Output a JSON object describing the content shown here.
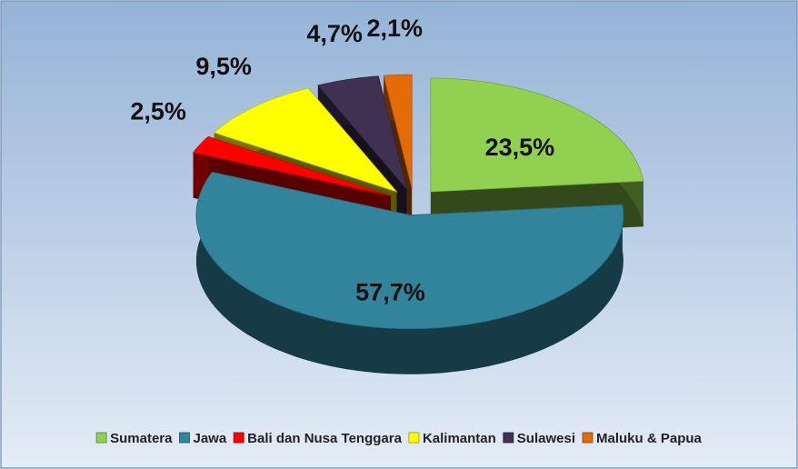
{
  "chart_data": {
    "type": "pie",
    "categories": [
      "Sumatera",
      "Jawa",
      "Bali dan Nusa Tenggara",
      "Kalimantan",
      "Sulawesi",
      "Maluku & Papua"
    ],
    "values": [
      23.5,
      57.7,
      2.5,
      9.5,
      4.7,
      2.1
    ],
    "value_labels": [
      "23,5%",
      "57,7%",
      "2,5%",
      "9,5%",
      "4,7%",
      "2,1%"
    ],
    "colors": [
      "#92d050",
      "#31849b",
      "#ff0000",
      "#ffff00",
      "#403152",
      "#e36c09"
    ],
    "legend": "bottom"
  }
}
